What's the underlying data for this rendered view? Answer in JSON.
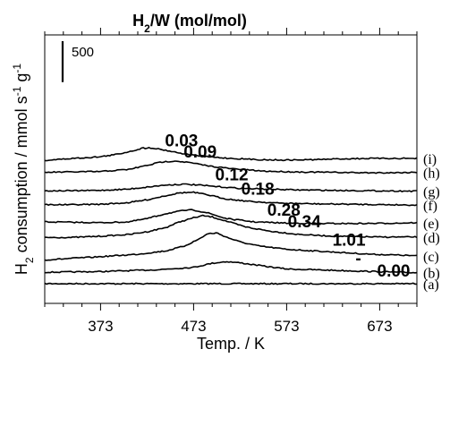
{
  "chart_data": {
    "type": "line",
    "title": "H2/W (mol/mol)",
    "xlabel": "Temp. / K",
    "ylabel": "H2 consumption / mmol s-1 g-1",
    "xlim": [
      313,
      713
    ],
    "xticks": [
      373,
      473,
      573,
      673
    ],
    "x_minor_step": 20,
    "grid": false,
    "scale_bar": {
      "label": "500",
      "value": 500
    },
    "series": [
      {
        "letter": "(a)",
        "label": "0.00",
        "baseline": 0,
        "label_x": 688,
        "points": [
          [
            313,
            0
          ],
          [
            713,
            0
          ]
        ]
      },
      {
        "letter": "(b)",
        "label": "-",
        "baseline": 140,
        "label_x": 650,
        "points": [
          [
            313,
            0
          ],
          [
            373,
            8
          ],
          [
            433,
            30
          ],
          [
            473,
            60
          ],
          [
            493,
            110
          ],
          [
            508,
            130
          ],
          [
            523,
            115
          ],
          [
            548,
            75
          ],
          [
            573,
            40
          ],
          [
            603,
            30
          ],
          [
            633,
            20
          ],
          [
            663,
            10
          ],
          [
            693,
            0
          ],
          [
            713,
            -6
          ]
        ]
      },
      {
        "letter": "(c)",
        "label": "1.01",
        "baseline": 320,
        "label_x": 640,
        "points": [
          [
            313,
            -30
          ],
          [
            343,
            -10
          ],
          [
            373,
            10
          ],
          [
            413,
            40
          ],
          [
            443,
            80
          ],
          [
            463,
            140
          ],
          [
            478,
            220
          ],
          [
            488,
            290
          ],
          [
            498,
            300
          ],
          [
            508,
            250
          ],
          [
            523,
            190
          ],
          [
            543,
            140
          ],
          [
            573,
            100
          ],
          [
            603,
            80
          ],
          [
            633,
            60
          ],
          [
            663,
            40
          ],
          [
            693,
            30
          ],
          [
            713,
            20
          ]
        ]
      },
      {
        "letter": "(d)",
        "label": "0.34",
        "baseline": 565,
        "label_x": 592,
        "points": [
          [
            313,
            0
          ],
          [
            343,
            0
          ],
          [
            373,
            15
          ],
          [
            403,
            35
          ],
          [
            423,
            70
          ],
          [
            443,
            120
          ],
          [
            458,
            190
          ],
          [
            473,
            240
          ],
          [
            483,
            265
          ],
          [
            493,
            250
          ],
          [
            508,
            200
          ],
          [
            528,
            130
          ],
          [
            553,
            80
          ],
          [
            583,
            40
          ],
          [
            613,
            20
          ],
          [
            643,
            10
          ],
          [
            673,
            5
          ],
          [
            713,
            5
          ]
        ]
      },
      {
        "letter": "(e)",
        "label": "0.28",
        "baseline": 735,
        "label_x": 570,
        "points": [
          [
            313,
            20
          ],
          [
            343,
            15
          ],
          [
            373,
            10
          ],
          [
            403,
            20
          ],
          [
            423,
            60
          ],
          [
            443,
            120
          ],
          [
            463,
            160
          ],
          [
            473,
            165
          ],
          [
            488,
            130
          ],
          [
            508,
            60
          ],
          [
            538,
            20
          ],
          [
            573,
            5
          ],
          [
            613,
            0
          ],
          [
            653,
            0
          ],
          [
            693,
            5
          ],
          [
            713,
            10
          ]
        ]
      },
      {
        "letter": "(f)",
        "label": "0.18",
        "baseline": 965,
        "label_x": 542,
        "points": [
          [
            313,
            0
          ],
          [
            343,
            0
          ],
          [
            373,
            5
          ],
          [
            403,
            25
          ],
          [
            423,
            60
          ],
          [
            443,
            110
          ],
          [
            458,
            145
          ],
          [
            473,
            150
          ],
          [
            488,
            120
          ],
          [
            508,
            70
          ],
          [
            533,
            40
          ],
          [
            563,
            20
          ],
          [
            603,
            10
          ],
          [
            643,
            5
          ],
          [
            683,
            0
          ],
          [
            713,
            -5
          ]
        ]
      },
      {
        "letter": "(g)",
        "label": "0.12",
        "baseline": 1135,
        "label_x": 514,
        "points": [
          [
            313,
            0
          ],
          [
            343,
            0
          ],
          [
            373,
            5
          ],
          [
            403,
            20
          ],
          [
            423,
            45
          ],
          [
            443,
            70
          ],
          [
            463,
            80
          ],
          [
            478,
            70
          ],
          [
            498,
            50
          ],
          [
            523,
            30
          ],
          [
            553,
            20
          ],
          [
            583,
            10
          ],
          [
            623,
            5
          ],
          [
            663,
            0
          ],
          [
            713,
            -5
          ]
        ]
      },
      {
        "letter": "(h)",
        "label": "0.09",
        "baseline": 1365,
        "label_x": 480,
        "points": [
          [
            313,
            -5
          ],
          [
            343,
            0
          ],
          [
            373,
            5
          ],
          [
            403,
            30
          ],
          [
            423,
            80
          ],
          [
            438,
            120
          ],
          [
            453,
            135
          ],
          [
            468,
            115
          ],
          [
            488,
            75
          ],
          [
            513,
            40
          ],
          [
            548,
            10
          ],
          [
            583,
            0
          ],
          [
            623,
            -5
          ],
          [
            653,
            -10
          ],
          [
            683,
            -10
          ],
          [
            713,
            -5
          ]
        ]
      },
      {
        "letter": "(i)",
        "label": "0.03",
        "baseline": 1530,
        "label_x": 460,
        "points": [
          [
            313,
            -25
          ],
          [
            343,
            0
          ],
          [
            373,
            20
          ],
          [
            393,
            55
          ],
          [
            408,
            95
          ],
          [
            418,
            125
          ],
          [
            428,
            130
          ],
          [
            443,
            100
          ],
          [
            463,
            55
          ],
          [
            488,
            20
          ],
          [
            513,
            0
          ],
          [
            543,
            -15
          ],
          [
            573,
            -20
          ],
          [
            603,
            -15
          ],
          [
            633,
            -5
          ],
          [
            663,
            0
          ],
          [
            713,
            0
          ]
        ]
      }
    ]
  }
}
